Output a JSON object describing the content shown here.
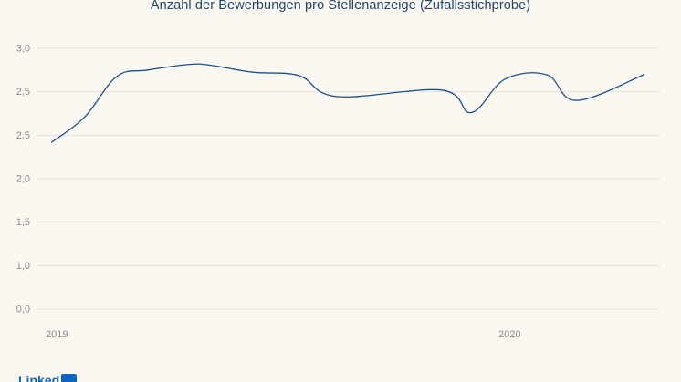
{
  "chart_data": {
    "type": "line",
    "title": "Anzahl der Bewerbungen pro Stellenanzeige (Zufallsstichprobe)",
    "xlabel": "",
    "ylabel": "",
    "y_tick_labels": [
      "3,0",
      "2,5",
      "2,5",
      "2,0",
      "1,5",
      "1,0",
      "0,0"
    ],
    "x_tick_labels": [
      "2019",
      "2020"
    ],
    "x": [
      0,
      40,
      78,
      115,
      165,
      190,
      240,
      295,
      340,
      465,
      500,
      540,
      590,
      625,
      706
    ],
    "y_scale": "tick_index",
    "y_range": [
      0,
      6
    ],
    "values": [
      3.83,
      4.42,
      5.35,
      5.5,
      5.63,
      5.61,
      5.45,
      5.37,
      4.89,
      5.04,
      4.52,
      5.29,
      5.39,
      4.8,
      5.4
    ],
    "grid": true,
    "legend": "none",
    "colors": {
      "line": "#1a4f93",
      "grid": "#e6e2d8",
      "background": "#fbf8f1",
      "title": "#21466e"
    }
  },
  "brand": {
    "name": "LinkedIn",
    "text": "Linked",
    "color": "#0a66c2"
  }
}
